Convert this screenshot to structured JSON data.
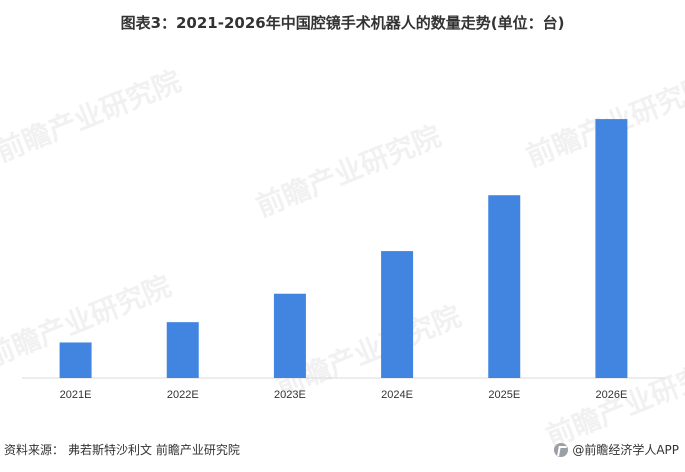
{
  "title": "图表3：2021-2026年中国腔镜手术机器人的数量走势(单位：台)",
  "chart_data": {
    "type": "bar",
    "categories": [
      "2021E",
      "2022E",
      "2023E",
      "2024E",
      "2025E",
      "2026E"
    ],
    "values": [
      35,
      55,
      83,
      125,
      180,
      255
    ],
    "bar_color": "#4185E0",
    "ylim": [
      0,
      260
    ],
    "grid": false,
    "legend": "none"
  },
  "source": {
    "label": "资料来源：",
    "text": "弗若斯特沙利文 前瞻产业研究院"
  },
  "brand": "@前瞻经济学人APP",
  "watermark": "前瞻产业研究院"
}
